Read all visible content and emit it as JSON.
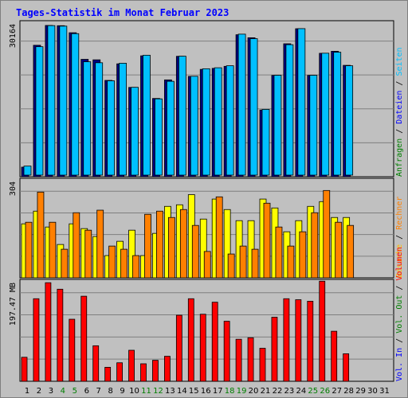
{
  "title": "Tages-Statistik im Monat Februar 2023",
  "colors": {
    "background": "#c0c0c0",
    "title_text": "#0000ff",
    "hits": "#00007f",
    "files": "#00c0ff",
    "pages": "#00ff00",
    "visits": "#ffff00",
    "sites": "#ff8000",
    "kbytes": "#ff0000",
    "grid": "#7f7f7f"
  },
  "chart_data": [
    {
      "type": "bar",
      "name": "top",
      "ytick_label": "30164",
      "ymax": 30164,
      "right_label_parts": [
        {
          "text": "Anfragen",
          "color": "#007f00"
        },
        {
          "text": " / ",
          "color": "#000000"
        },
        {
          "text": "Dateien",
          "color": "#0000ff"
        },
        {
          "text": " / ",
          "color": "#000000"
        },
        {
          "text": "Seiten",
          "color": "#00c0ff"
        }
      ],
      "series": [
        {
          "key": "hits",
          "values": [
            1910,
            26200,
            30150,
            30100,
            28700,
            23400,
            23300,
            19200,
            22500,
            17800,
            24100,
            15600,
            19300,
            24000,
            20000,
            21400,
            21600,
            22000,
            28300,
            27700,
            13300,
            20200,
            26500,
            29500,
            20200,
            24600,
            25000,
            22200
          ]
        },
        {
          "key": "files",
          "values": [
            1800,
            25600,
            29800,
            29700,
            28200,
            22600,
            22400,
            18800,
            22300,
            17500,
            23900,
            15200,
            18700,
            23700,
            19700,
            21200,
            21400,
            21800,
            28100,
            27200,
            13100,
            19900,
            26000,
            29200,
            19900,
            24300,
            24500,
            21800
          ]
        }
      ]
    },
    {
      "type": "bar",
      "name": "middle",
      "ytick_label": "304",
      "ymax": 304,
      "right_label_parts": [
        {
          "text": "Besuche",
          "color": "#ffc000"
        },
        {
          "text": " / ",
          "color": "#000000"
        },
        {
          "text": "Rechner",
          "color": "#ff8000"
        }
      ],
      "series": [
        {
          "key": "visits",
          "values": [
            170,
            210,
            160,
            105,
            170,
            155,
            130,
            70,
            115,
            150,
            70,
            140,
            225,
            230,
            262,
            185,
            248,
            215,
            180,
            180,
            248,
            220,
            145,
            180,
            225,
            240,
            190,
            190
          ]
        },
        {
          "key": "sites",
          "values": [
            175,
            270,
            175,
            90,
            205,
            150,
            213,
            100,
            90,
            70,
            200,
            210,
            190,
            215,
            165,
            83,
            255,
            75,
            100,
            90,
            235,
            160,
            100,
            145,
            205,
            275,
            175,
            165
          ]
        }
      ]
    },
    {
      "type": "bar",
      "name": "bottom",
      "ytick_label": "197.47 MB",
      "ymax": 197.47,
      "right_label_parts": [
        {
          "text": "Volumen",
          "color": "#ff0000"
        }
      ],
      "series": [
        {
          "key": "kbytes",
          "values": [
            48,
            165,
            197,
            184,
            124,
            170,
            71,
            28,
            37,
            62,
            35,
            42,
            50,
            132,
            165,
            134,
            158,
            120,
            84,
            87,
            66,
            128,
            165,
            163,
            160,
            200,
            100,
            55
          ]
        }
      ]
    }
  ],
  "extra_right_label": [
    {
      "text": "Vol. In",
      "color": "#0000ff"
    },
    {
      "text": " / ",
      "color": "#000000"
    },
    {
      "text": "Vol. Out",
      "color": "#007f00"
    },
    {
      "text": " / ",
      "color": "#000000"
    }
  ],
  "days": [
    "1",
    "2",
    "3",
    "4",
    "5",
    "6",
    "7",
    "8",
    "9",
    "10",
    "11",
    "12",
    "13",
    "14",
    "15",
    "16",
    "17",
    "18",
    "19",
    "20",
    "21",
    "22",
    "23",
    "24",
    "25",
    "26",
    "27",
    "28",
    "29",
    "30",
    "31"
  ],
  "weekend_days": [
    "4",
    "5",
    "11",
    "12",
    "18",
    "19",
    "25",
    "26"
  ]
}
